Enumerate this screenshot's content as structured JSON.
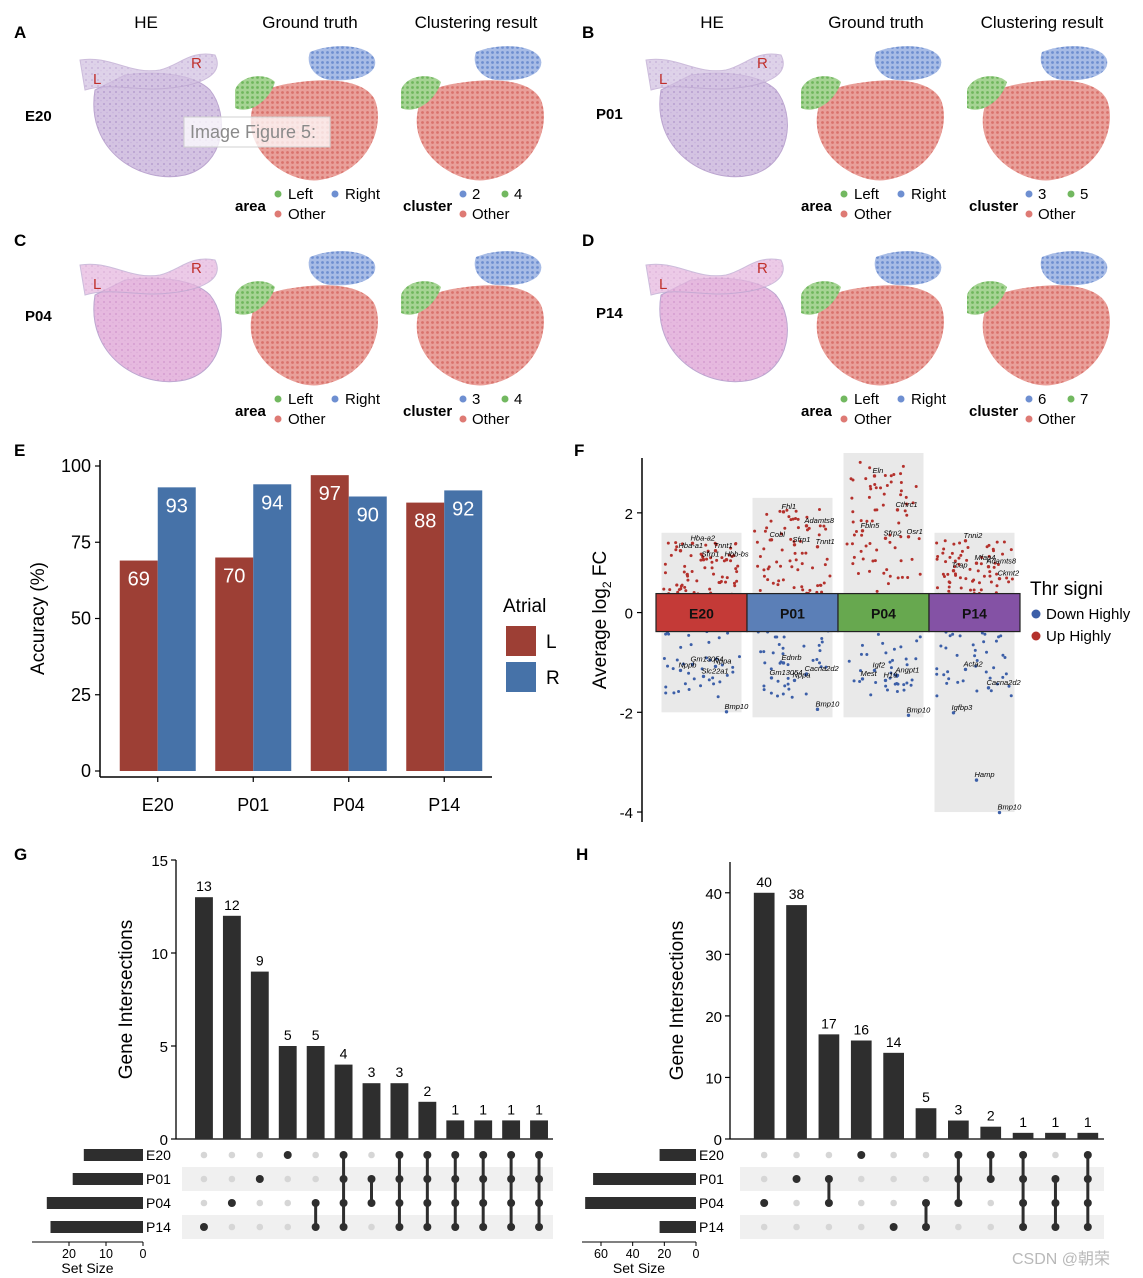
{
  "panel_letters": [
    "A",
    "B",
    "C",
    "D",
    "E",
    "F",
    "G",
    "H"
  ],
  "spatial": {
    "columns": [
      "HE",
      "Ground truth",
      "Clustering result"
    ],
    "he_markers": [
      "L",
      "R"
    ],
    "legend_area_title": "area",
    "legend_cluster_title": "cluster",
    "legend_left": "Left",
    "legend_right": "Right",
    "legend_other": "Other",
    "panels": [
      {
        "letter": "A",
        "sample": "E20",
        "clusters": [
          "2",
          "4"
        ]
      },
      {
        "letter": "B",
        "sample": "P01",
        "clusters": [
          "3",
          "5"
        ]
      },
      {
        "letter": "C",
        "sample": "P04",
        "clusters": [
          "3",
          "4"
        ]
      },
      {
        "letter": "D",
        "sample": "P14",
        "clusters": [
          "6",
          "7"
        ]
      }
    ],
    "colors": {
      "left": "#72b860",
      "right": "#6e8fd1",
      "other": "#de7a74",
      "he": "#c5aed8"
    }
  },
  "image_tooltip": "Image Figure 5:",
  "chart_data": [
    {
      "panel": "E",
      "type": "bar",
      "categories": [
        "E20",
        "P01",
        "P04",
        "P14"
      ],
      "series": [
        {
          "name": "L",
          "values": [
            69,
            70,
            97,
            88
          ],
          "color": "#9d3f35"
        },
        {
          "name": "R",
          "values": [
            93,
            94,
            90,
            92
          ],
          "color": "#4672a8"
        }
      ],
      "ylabel": "Accuracy (%)",
      "ylim": [
        0,
        100
      ],
      "yticks": [
        0,
        25,
        50,
        75,
        100
      ],
      "legend_title": "Atrial",
      "legend_position": "right"
    },
    {
      "panel": "F",
      "type": "scatter",
      "ylabel": "Average log",
      "ylabel_sub": "2",
      "ylabel_tail": " FC",
      "ylim": [
        -4.2,
        3.1
      ],
      "yticks": [
        -4,
        -2,
        0,
        2
      ],
      "groups": [
        {
          "name": "E20",
          "color": "#c43a37"
        },
        {
          "name": "P01",
          "color": "#5b7fb7"
        },
        {
          "name": "P04",
          "color": "#67a84f"
        },
        {
          "name": "P14",
          "color": "#8452a5"
        }
      ],
      "group_ranges": [
        {
          "group": "E20",
          "min": -2.0,
          "max": 1.6
        },
        {
          "group": "P01",
          "min": -2.1,
          "max": 2.3
        },
        {
          "group": "P04",
          "min": -2.1,
          "max": 3.2
        },
        {
          "group": "P14",
          "min": -4.0,
          "max": 1.6
        }
      ],
      "legend_title": "Thr signi",
      "legend_entries": [
        {
          "label": "Down Highly",
          "color": "#3c5fa8"
        },
        {
          "label": "Up Highly",
          "color": "#b4312c"
        }
      ],
      "genes": [
        {
          "group": "E20",
          "label": "Hba-a2",
          "y": 1.45
        },
        {
          "group": "E20",
          "label": "Tnnt1",
          "y": 1.3
        },
        {
          "group": "E20",
          "label": "Hba-a1",
          "y": 1.3
        },
        {
          "group": "E20",
          "label": "Sfrp1",
          "y": 1.12
        },
        {
          "group": "E20",
          "label": "Hbb-bs",
          "y": 1.12
        },
        {
          "group": "E20",
          "label": "Gm13054",
          "y": -0.98
        },
        {
          "group": "E20",
          "label": "Nppa",
          "y": -1.02
        },
        {
          "group": "E20",
          "label": "Nppb",
          "y": -1.1
        },
        {
          "group": "E20",
          "label": "Slc22a1",
          "y": -1.22
        },
        {
          "group": "E20",
          "label": "Bmp10",
          "y": -1.93
        },
        {
          "group": "P01",
          "label": "Fhl1",
          "y": 2.08
        },
        {
          "group": "P01",
          "label": "Adamts8",
          "y": 1.8
        },
        {
          "group": "P01",
          "label": "Cobl",
          "y": 1.52
        },
        {
          "group": "P01",
          "label": "Sfrp1",
          "y": 1.42
        },
        {
          "group": "P01",
          "label": "Tnnt1",
          "y": 1.38
        },
        {
          "group": "P01",
          "label": "Ednrb",
          "y": -0.95
        },
        {
          "group": "P01",
          "label": "Cacna2d2",
          "y": -1.17
        },
        {
          "group": "P01",
          "label": "Gm13054",
          "y": -1.25
        },
        {
          "group": "P01",
          "label": "Nppa",
          "y": -1.3
        },
        {
          "group": "P01",
          "label": "Bmp10",
          "y": -1.88
        },
        {
          "group": "P04",
          "label": "Eln",
          "y": 2.8
        },
        {
          "group": "P04",
          "label": "Cthrc1",
          "y": 2.12
        },
        {
          "group": "P04",
          "label": "Fbln5",
          "y": 1.7
        },
        {
          "group": "P04",
          "label": "Sfrp2",
          "y": 1.55
        },
        {
          "group": "P04",
          "label": "Osr1",
          "y": 1.58
        },
        {
          "group": "P04",
          "label": "Igf2",
          "y": -1.1
        },
        {
          "group": "P04",
          "label": "Angpt1",
          "y": -1.2
        },
        {
          "group": "P04",
          "label": "Mest",
          "y": -1.27
        },
        {
          "group": "P04",
          "label": "H19",
          "y": -1.3
        },
        {
          "group": "P04",
          "label": "Bmp10",
          "y": -2.0
        },
        {
          "group": "P14",
          "label": "Tnni2",
          "y": 1.5
        },
        {
          "group": "P14",
          "label": "Adamts8",
          "y": 0.98
        },
        {
          "group": "P14",
          "label": "Tcap",
          "y": 0.9
        },
        {
          "group": "P14",
          "label": "Mfap4",
          "y": 1.05
        },
        {
          "group": "P14",
          "label": "Ckmt2",
          "y": 0.74
        },
        {
          "group": "P14",
          "label": "Acta2",
          "y": -1.08
        },
        {
          "group": "P14",
          "label": "Cacna2d2",
          "y": -1.45
        },
        {
          "group": "P14",
          "label": "Igfbp3",
          "y": -1.95
        },
        {
          "group": "P14",
          "label": "Hamp",
          "y": -3.3
        },
        {
          "group": "P14",
          "label": "Bmp10",
          "y": -3.95
        }
      ]
    },
    {
      "panel": "G",
      "type": "bar",
      "ylabel": "Gene Intersections",
      "ylim": [
        0,
        15
      ],
      "yticks": [
        0,
        5,
        10,
        15
      ],
      "values": [
        13,
        12,
        9,
        5,
        5,
        4,
        3,
        3,
        2,
        1,
        1,
        1,
        1
      ],
      "sets": [
        "E20",
        "P01",
        "P04",
        "P14"
      ],
      "set_sizes": [
        16,
        19,
        26,
        25
      ],
      "set_size_ticks": [
        20,
        10,
        0
      ],
      "set_size_max": 30,
      "set_size_label": "Set Size",
      "memberships": [
        [
          3
        ],
        [
          2
        ],
        [
          1
        ],
        [
          0
        ],
        [
          2,
          3
        ],
        [
          0,
          1,
          2,
          3
        ],
        [
          1,
          2
        ],
        [
          0,
          1,
          2,
          3
        ],
        [
          0,
          1,
          2,
          3
        ],
        [
          0,
          1,
          2,
          3
        ],
        [
          0,
          1,
          2,
          3
        ],
        [
          0,
          1,
          2,
          3
        ],
        [
          0,
          1,
          2,
          3
        ]
      ]
    },
    {
      "panel": "H",
      "type": "bar",
      "ylabel": "Gene Intersections",
      "ylim": [
        0,
        45
      ],
      "yticks": [
        0,
        10,
        20,
        30,
        40
      ],
      "values": [
        40,
        38,
        17,
        16,
        14,
        5,
        3,
        2,
        1,
        1,
        1
      ],
      "sets": [
        "E20",
        "P01",
        "P04",
        "P14"
      ],
      "set_sizes": [
        23,
        65,
        70,
        23
      ],
      "set_size_ticks": [
        60,
        40,
        20,
        0
      ],
      "set_size_max": 72,
      "set_size_label": "Set Size",
      "memberships": [
        [
          2
        ],
        [
          1
        ],
        [
          1,
          2
        ],
        [
          0
        ],
        [
          3
        ],
        [
          2,
          3
        ],
        [
          0,
          1,
          2
        ],
        [
          0,
          1
        ],
        [
          0,
          1,
          2,
          3
        ],
        [
          1,
          2,
          3
        ],
        [
          0,
          1,
          2,
          3
        ]
      ]
    }
  ],
  "watermark": "CSDN @朝荣"
}
